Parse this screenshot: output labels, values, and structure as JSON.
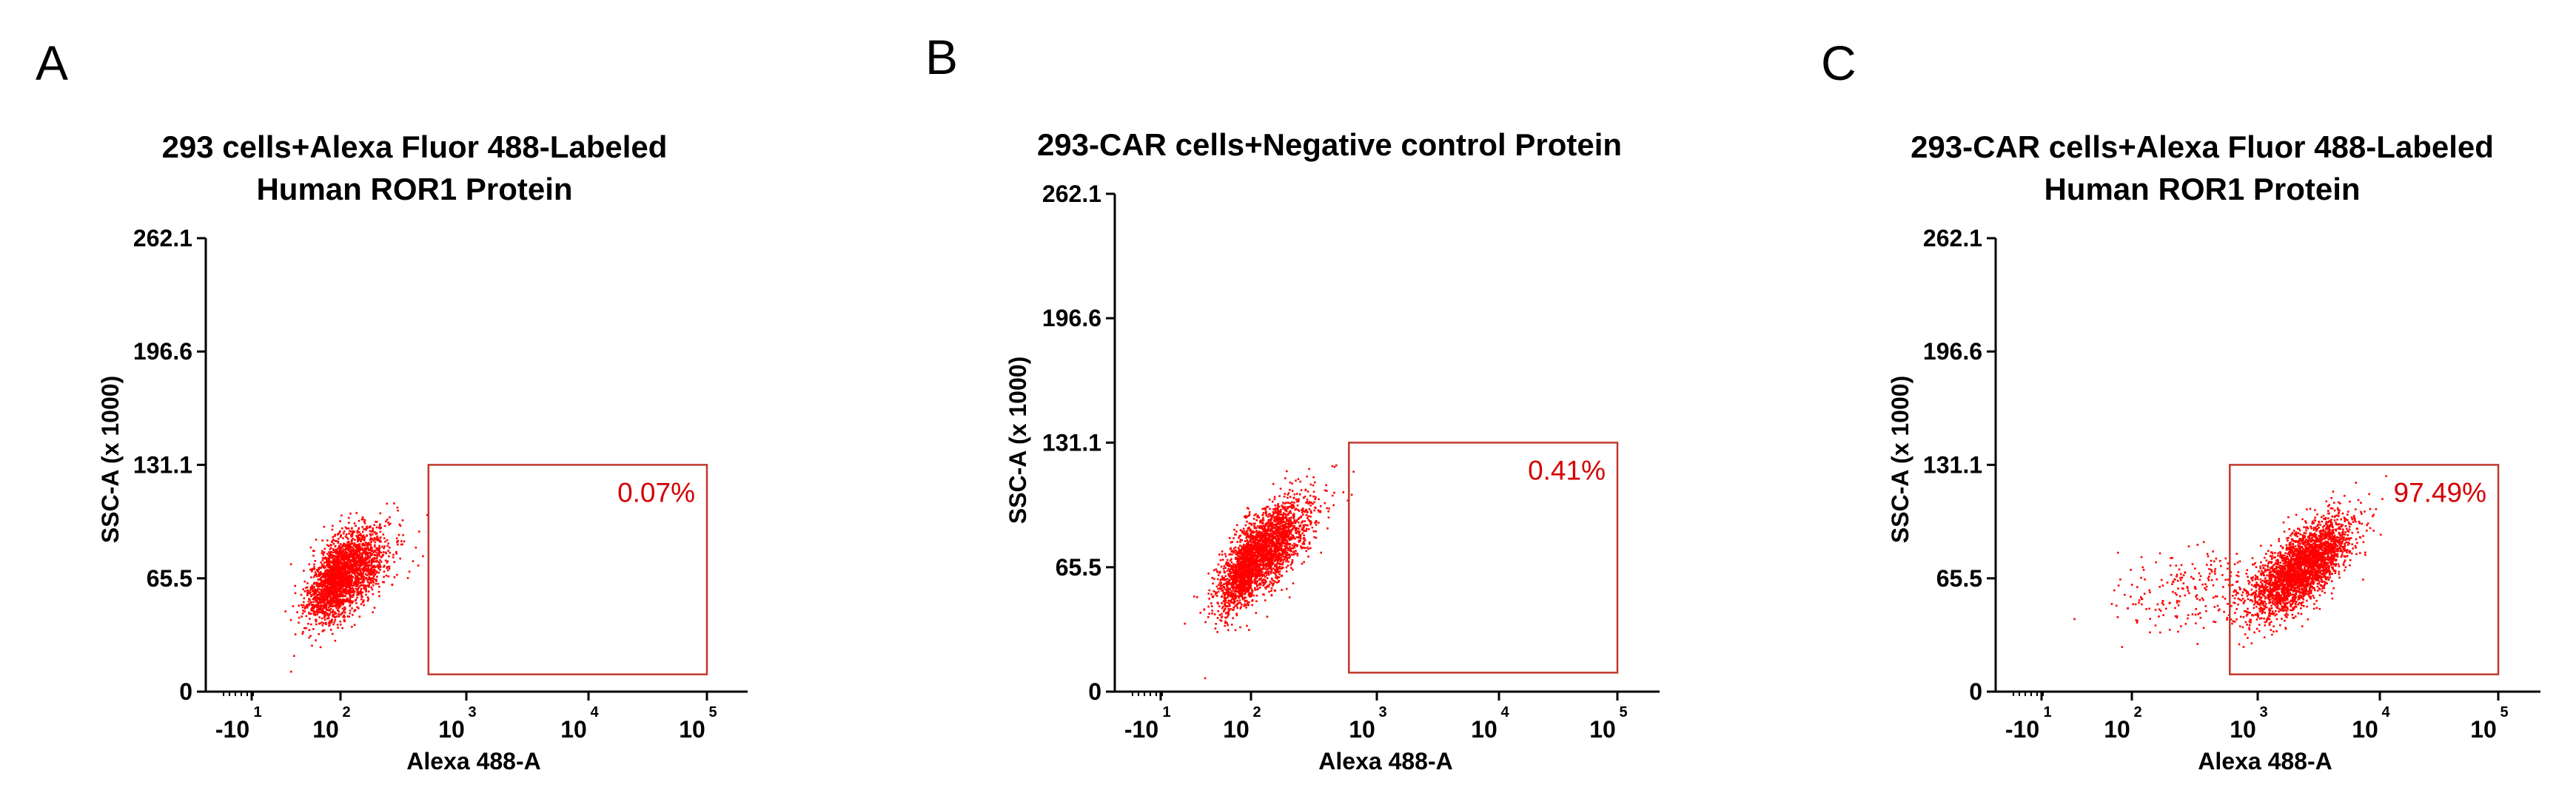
{
  "colors": {
    "events": "#ff0000",
    "gate": "#c0392b",
    "gate_label": "#d40000",
    "axis": "#000000"
  },
  "chart_data": [
    {
      "type": "scatter",
      "panel_label": "A",
      "title": [
        "293 cells+Alexa Fluor 488-Labeled",
        "Human ROR1 Protein"
      ],
      "xlabel": "Alexa 488-A",
      "ylabel": "SSC-A (x 1000)",
      "x_scale": "log",
      "ylim": [
        0,
        262.1
      ],
      "y_ticks": [
        "0",
        "65.5",
        "131.1",
        "196.6",
        "262.1"
      ],
      "x_ticks": [
        {
          "base": "-10",
          "exp": "1"
        },
        {
          "base": "10",
          "exp": "2"
        },
        {
          "base": "10",
          "exp": "3"
        },
        {
          "base": "10",
          "exp": "4"
        },
        {
          "base": "10",
          "exp": "5"
        }
      ],
      "gate": {
        "label": "0.07%",
        "x_min": 500,
        "x_max": 100000,
        "y_min": 10,
        "y_max": 131.1
      },
      "populations": [
        {
          "center_log10_x": 2.0,
          "center_y": 68,
          "spread_log10_x": 0.18,
          "spread_y": 13,
          "events": 2600,
          "corr": 0.55
        }
      ]
    },
    {
      "type": "scatter",
      "panel_label": "B",
      "title": [
        "293-CAR cells+Negative control Protein"
      ],
      "xlabel": "Alexa 488-A",
      "ylabel": "SSC-A (x 1000)",
      "x_scale": "log",
      "ylim": [
        0,
        262.1
      ],
      "y_ticks": [
        "0",
        "65.5",
        "131.1",
        "196.6",
        "262.1"
      ],
      "x_ticks": [
        {
          "base": "-10",
          "exp": "1"
        },
        {
          "base": "10",
          "exp": "2"
        },
        {
          "base": "10",
          "exp": "3"
        },
        {
          "base": "10",
          "exp": "4"
        },
        {
          "base": "10",
          "exp": "5"
        }
      ],
      "gate": {
        "label": "0.41%",
        "x_min": 600,
        "x_max": 100000,
        "y_min": 10,
        "y_max": 131.1
      },
      "populations": [
        {
          "center_log10_x": 2.05,
          "center_y": 72,
          "spread_log10_x": 0.2,
          "spread_y": 14,
          "events": 3000,
          "corr": 0.72
        }
      ]
    },
    {
      "type": "scatter",
      "panel_label": "C",
      "title": [
        "293-CAR cells+Alexa Fluor 488-Labeled",
        "Human ROR1 Protein"
      ],
      "xlabel": "Alexa 488-A",
      "ylabel": "SSC-A (x 1000)",
      "x_scale": "log",
      "ylim": [
        0,
        262.1
      ],
      "y_ticks": [
        "0",
        "65.5",
        "131.1",
        "196.6",
        "262.1"
      ],
      "x_ticks": [
        {
          "base": "-10",
          "exp": "1"
        },
        {
          "base": "10",
          "exp": "2"
        },
        {
          "base": "10",
          "exp": "3"
        },
        {
          "base": "10",
          "exp": "4"
        },
        {
          "base": "10",
          "exp": "5"
        }
      ],
      "gate": {
        "label": "97.49%",
        "x_min": 600,
        "x_max": 100000,
        "y_min": 10,
        "y_max": 131.1
      },
      "populations": [
        {
          "center_log10_x": 3.35,
          "center_y": 72,
          "spread_log10_x": 0.2,
          "spread_y": 14,
          "events": 3000,
          "corr": 0.7
        },
        {
          "center_log10_x": 2.55,
          "center_y": 60,
          "spread_log10_x": 0.35,
          "spread_y": 11,
          "events": 260,
          "corr": 0.2
        }
      ]
    }
  ]
}
